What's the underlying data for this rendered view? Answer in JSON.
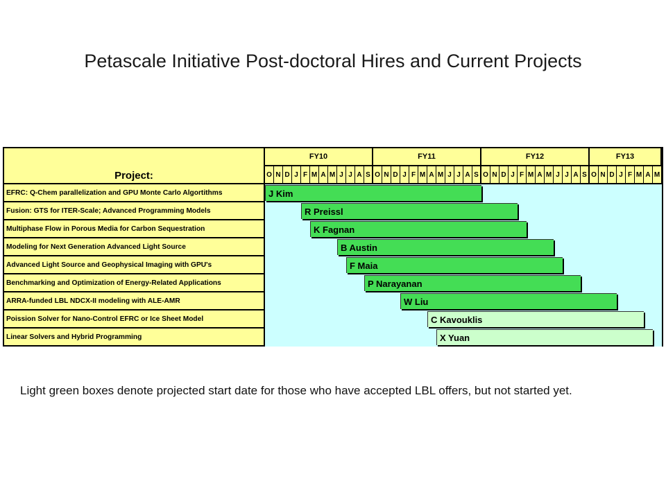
{
  "title": "Petascale Initiative Post-doctoral Hires and Current Projects",
  "table": {
    "project_header": "Project:",
    "fiscal_years": [
      "FY10",
      "FY11",
      "FY12",
      "FY13"
    ],
    "months": [
      "O",
      "N",
      "D",
      "J",
      "F",
      "M",
      "A",
      "M",
      "J",
      "J",
      "A",
      "S",
      "O",
      "N",
      "D",
      "J",
      "F",
      "M",
      "A",
      "M",
      "J",
      "J",
      "A",
      "S",
      "O",
      "N",
      "D",
      "J",
      "F",
      "M",
      "A",
      "M",
      "J",
      "J",
      "A",
      "S",
      "O",
      "N",
      "D",
      "J",
      "F",
      "M",
      "A",
      "M"
    ],
    "colors": {
      "header": "#ffff99",
      "timeline_bg": "#ccffff",
      "started": "#44dd55",
      "projected": "#ccffcc"
    },
    "rows": [
      {
        "project": "EFRC: Q-Chem parallelization and GPU Monte Carlo Algortithms",
        "person": "J Kim",
        "start_month_index": 0,
        "end_month_index": 24,
        "status": "started"
      },
      {
        "project": "Fusion: GTS for ITER-Scale; Advanced Programming Models",
        "person": "R Preissl",
        "start_month_index": 4,
        "end_month_index": 28,
        "status": "started"
      },
      {
        "project": "Multiphase Flow in Porous Media for Carbon Sequestration",
        "person": "K Fagnan",
        "start_month_index": 5,
        "end_month_index": 29,
        "status": "started"
      },
      {
        "project": "Modeling for Next Generation Advanced Light Source",
        "person": "B Austin",
        "start_month_index": 8,
        "end_month_index": 32,
        "status": "started"
      },
      {
        "project": "Advanced Light Source and Geophysical Imaging with GPU's",
        "person": "F Maia",
        "start_month_index": 9,
        "end_month_index": 33,
        "status": "started"
      },
      {
        "project": "Benchmarking and Optimization of Energy-Related Applications",
        "person": "P Narayanan",
        "start_month_index": 11,
        "end_month_index": 35,
        "status": "started"
      },
      {
        "project": "ARRA-funded LBL NDCX-II modeling with ALE-AMR",
        "person": "W Liu",
        "start_month_index": 15,
        "end_month_index": 39,
        "status": "started"
      },
      {
        "project": "Poission Solver for Nano-Control EFRC or Ice Sheet Model",
        "person": "C Kavouklis",
        "start_month_index": 18,
        "end_month_index": 42,
        "status": "projected"
      },
      {
        "project": "Linear Solvers and Hybrid Programming",
        "person": "X Yuan",
        "start_month_index": 19,
        "end_month_index": 43,
        "status": "projected"
      }
    ]
  },
  "note": "Light green boxes denote projected start date for those who have accepted LBL offers, but not started yet."
}
